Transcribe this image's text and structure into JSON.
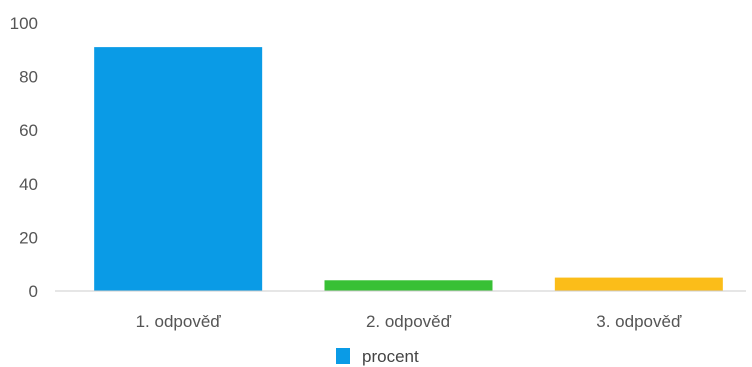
{
  "chart_data": {
    "type": "bar",
    "categories": [
      "1. odpověď",
      "2. odpověď",
      "3. odpověď"
    ],
    "series": [
      {
        "name": "procent",
        "values": [
          91,
          4,
          5
        ]
      }
    ],
    "bar_colors": [
      "#0a9be6",
      "#38c035",
      "#fbbd19"
    ],
    "legend_color": "#0a9be6",
    "ylim": [
      0,
      100
    ],
    "yticks": [
      0,
      20,
      40,
      60,
      80,
      100
    ],
    "legend_position": "bottom-center",
    "grid": false,
    "axis_color": "#cccccc",
    "title": "",
    "xlabel": "",
    "ylabel": ""
  }
}
